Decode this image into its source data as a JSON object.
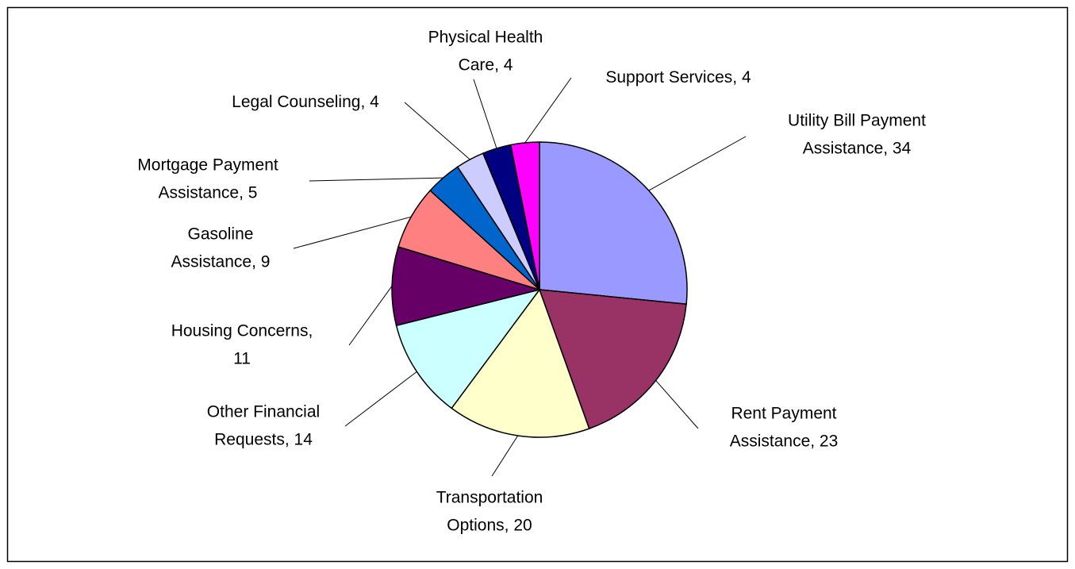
{
  "chart_data": {
    "type": "pie",
    "labels": [
      "Utility Bill Payment\nAssistance, 34",
      "Rent Payment\nAssistance, 23",
      "Transportation\nOptions, 20",
      "Other Financial\nRequests, 14",
      "Housing Concerns,\n11",
      "Gasoline\nAssistance, 9",
      "Mortgage Payment\nAssistance, 5",
      "Legal Counseling, 4",
      "Physical Health\nCare, 4",
      "Support Services, 4"
    ],
    "values": [
      34,
      23,
      20,
      14,
      11,
      9,
      5,
      4,
      4,
      4
    ],
    "colors": [
      "#9999ff",
      "#993366",
      "#ffffcc",
      "#ccffff",
      "#660066",
      "#ff8080",
      "#0066cc",
      "#ccccff",
      "#000080",
      "#ff00ff"
    ]
  }
}
